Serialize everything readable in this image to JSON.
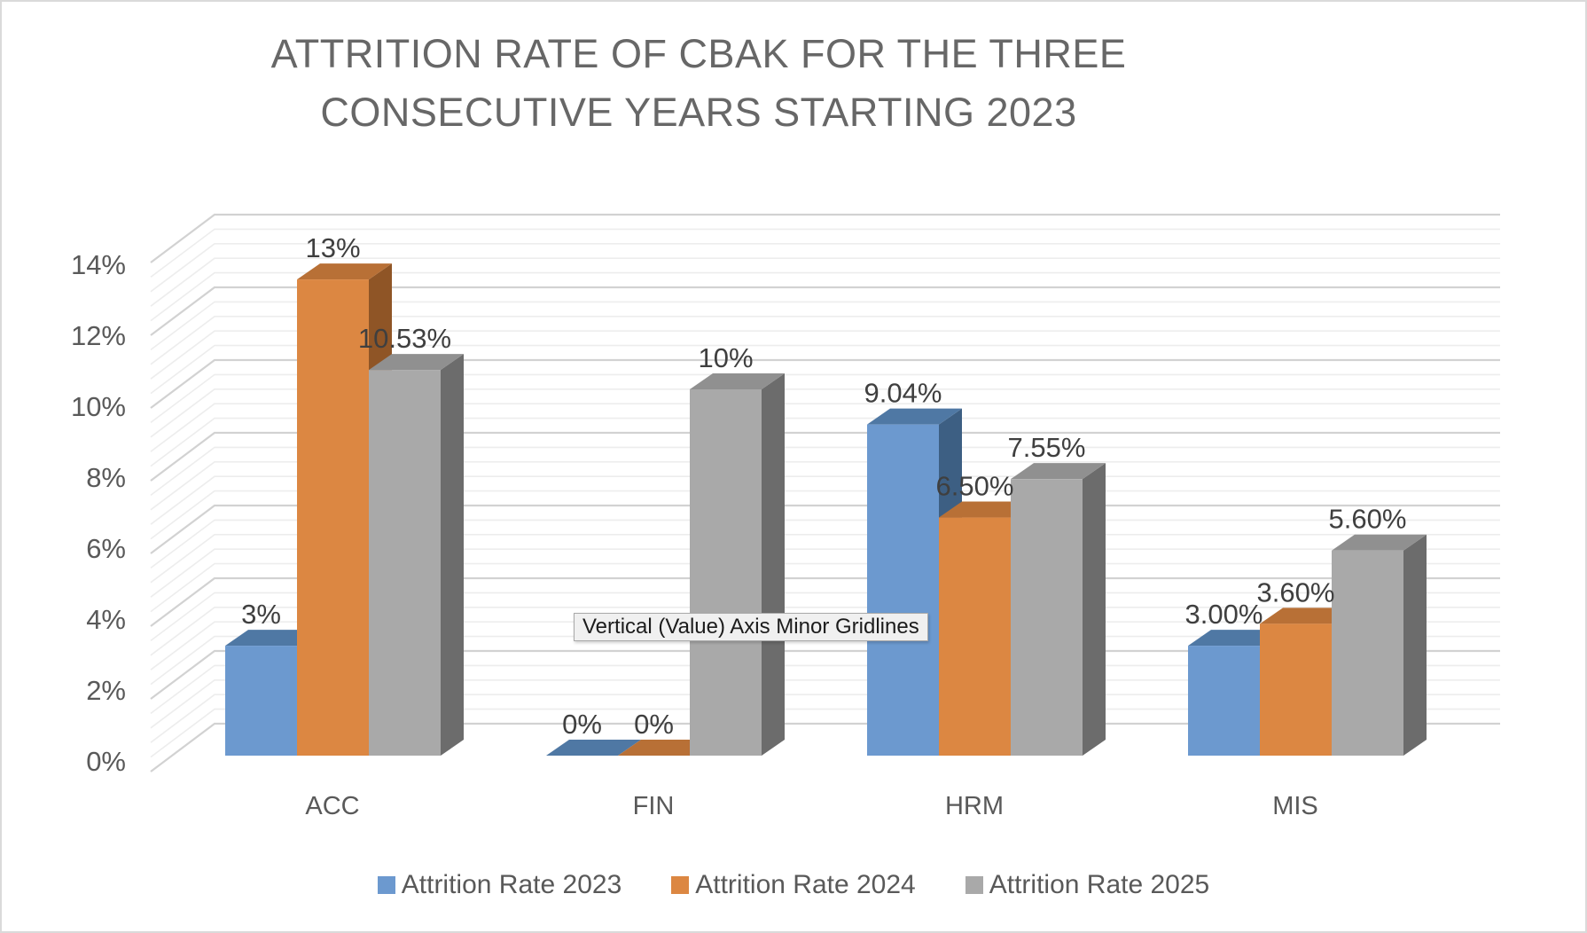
{
  "window": {
    "background": "#ffffff",
    "border_color": "#dadada"
  },
  "title": {
    "line1": "ATTRITION RATE OF CBAK FOR THE THREE",
    "line2": "CONSECUTIVE YEARS STARTING 2023",
    "color": "#676767"
  },
  "tooltip": {
    "text": "Vertical (Value) Axis Minor Gridlines"
  },
  "y_axis": {
    "ticks": [
      "14%",
      "12%",
      "10%",
      "8%",
      "6%",
      "4%",
      "2%",
      "0%"
    ],
    "text_color": "#595959"
  },
  "x_axis": {
    "text_color": "#595959"
  },
  "chart_data": {
    "type": "bar",
    "style": "3d-clustered-column",
    "title": "ATTRITION RATE OF CBAK FOR THE THREE CONSECUTIVE YEARS STARTING 2023",
    "categories": [
      "ACC",
      "FIN",
      "HRM",
      "MIS"
    ],
    "series": [
      {
        "name": "Attrition Rate 2023",
        "values": [
          3,
          0,
          9.04,
          3.0
        ],
        "labels": [
          "3%",
          "0%",
          "9.04%",
          "3.00%"
        ],
        "colors": {
          "front": "#6c99cf",
          "top": "#4f78a4",
          "side": "#3d5f83"
        }
      },
      {
        "name": "Attrition Rate 2024",
        "values": [
          13,
          0,
          6.5,
          3.6
        ],
        "labels": [
          "13%",
          "0%",
          "6.50%",
          "3.60%"
        ],
        "colors": {
          "front": "#dc8742",
          "top": "#b87036",
          "side": "#8f5526"
        }
      },
      {
        "name": "Attrition Rate 2025",
        "values": [
          10.53,
          10,
          7.55,
          5.6
        ],
        "labels": [
          "10.53%",
          "10%",
          "7.55%",
          "5.60%"
        ],
        "colors": {
          "front": "#a9a9a9",
          "top": "#909090",
          "side": "#6c6c6c"
        }
      }
    ],
    "ylim": [
      0,
      14
    ],
    "y_tick_format": "percent",
    "y_major_unit": 2,
    "y_minor_unit": 0.4,
    "xlabel": "",
    "ylabel": "",
    "legend_position": "bottom",
    "grid": {
      "minor_color": "#ededed",
      "major_color": "#d2d2d2"
    },
    "data_label_color": "#3f3f3f"
  }
}
